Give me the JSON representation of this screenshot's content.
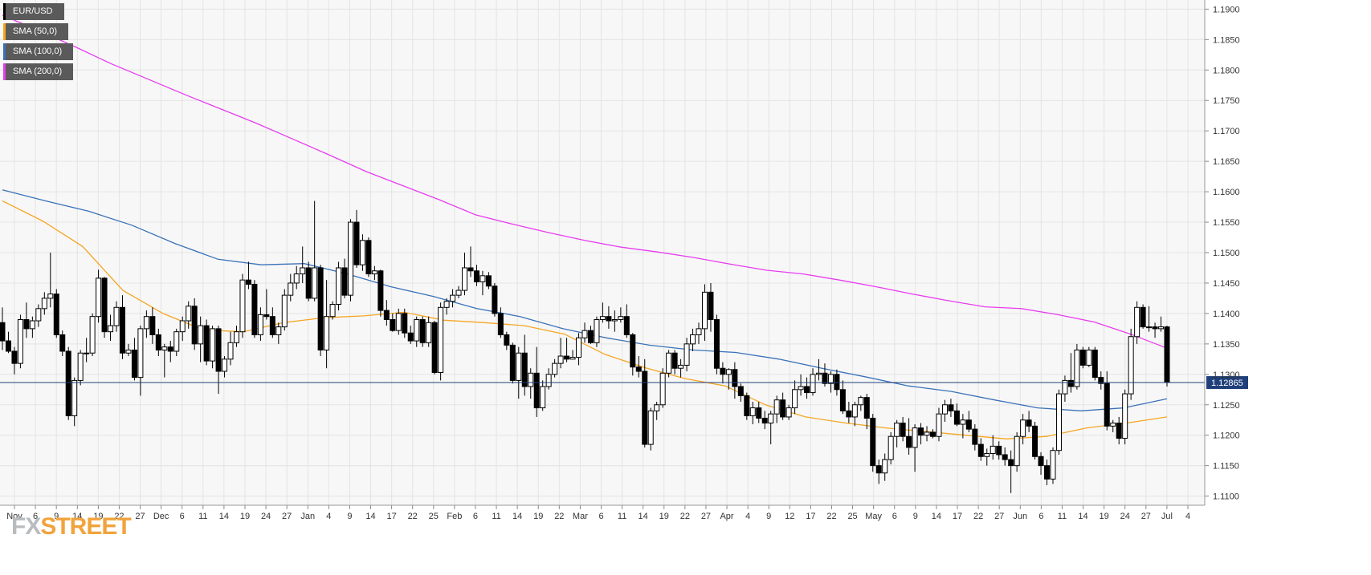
{
  "chart_data": {
    "type": "candlestick",
    "symbol": "EUR/USD",
    "last_price": "1.12865",
    "ylim": [
      1.1085,
      1.1915
    ],
    "y_ticks": [
      "1.1100",
      "1.1150",
      "1.1200",
      "1.1250",
      "1.1300",
      "1.1350",
      "1.1400",
      "1.1450",
      "1.1500",
      "1.1550",
      "1.1600",
      "1.1650",
      "1.1700",
      "1.1750",
      "1.1800",
      "1.1850",
      "1.1900"
    ],
    "x_ticks": [
      "Nov",
      "6",
      "9",
      "14",
      "19",
      "22",
      "27",
      "Dec",
      "6",
      "11",
      "14",
      "19",
      "24",
      "27",
      "Jan",
      "4",
      "9",
      "14",
      "17",
      "22",
      "25",
      "Feb",
      "6",
      "11",
      "14",
      "19",
      "22",
      "Mar",
      "6",
      "11",
      "14",
      "19",
      "22",
      "27",
      "Apr",
      "4",
      "9",
      "12",
      "17",
      "22",
      "25",
      "May",
      "6",
      "9",
      "14",
      "17",
      "22",
      "27",
      "Jun",
      "6",
      "11",
      "14",
      "19",
      "24",
      "27",
      "Jul",
      "4"
    ],
    "grid": true,
    "legend": [
      "EUR/USD",
      "SMA (50,0)",
      "SMA (100,0)",
      "SMA (200,0)"
    ],
    "colors": {
      "up_body": "#ffffff",
      "down_body": "#000000",
      "sma50": "#f5a623",
      "sma100": "#3a72b8",
      "sma200": "#e83cf0",
      "price_line": "#1f3f7a",
      "grid": "#e4e4e4",
      "plot_bg": "#f7f7f7"
    },
    "series_lines": [
      {
        "name": "SMA (200,0)",
        "color": "#e83cf0",
        "values": [
          1.189,
          1.1865,
          1.1838,
          1.181,
          1.1785,
          1.176,
          1.1736,
          1.1712,
          1.1686,
          1.166,
          1.1633,
          1.161,
          1.1587,
          1.1562,
          1.1547,
          1.1533,
          1.152,
          1.1509,
          1.1501,
          1.1492,
          1.1481,
          1.1471,
          1.1465,
          1.1455,
          1.1444,
          1.1432,
          1.1421,
          1.1411,
          1.1408,
          1.1398,
          1.1386,
          1.1366,
          1.1343
        ]
      },
      {
        "name": "SMA (100,0)",
        "color": "#3a72b8",
        "values": [
          1.1603,
          1.1585,
          1.1568,
          1.1545,
          1.1515,
          1.1489,
          1.148,
          1.1482,
          1.1465,
          1.1444,
          1.1428,
          1.1408,
          1.1395,
          1.1375,
          1.136,
          1.1348,
          1.134,
          1.1336,
          1.1325,
          1.131,
          1.1296,
          1.1281,
          1.1272,
          1.1258,
          1.1245,
          1.124,
          1.1245,
          1.126
        ]
      },
      {
        "name": "SMA (50,0)",
        "color": "#f5a623",
        "values": [
          1.1585,
          1.1552,
          1.151,
          1.1438,
          1.14,
          1.1373,
          1.137,
          1.1385,
          1.1393,
          1.1396,
          1.1402,
          1.1389,
          1.1385,
          1.138,
          1.1366,
          1.1333,
          1.1311,
          1.1293,
          1.1281,
          1.125,
          1.123,
          1.122,
          1.1212,
          1.1206,
          1.12,
          1.1194,
          1.1198,
          1.1212,
          1.122,
          1.123
        ]
      }
    ],
    "candles": [
      [
        1.1385,
        1.141,
        1.134,
        1.1355
      ],
      [
        1.1355,
        1.137,
        1.1335,
        1.1338
      ],
      [
        1.1338,
        1.1345,
        1.13,
        1.1318
      ],
      [
        1.1318,
        1.1398,
        1.131,
        1.139
      ],
      [
        1.139,
        1.1418,
        1.136,
        1.1375
      ],
      [
        1.1375,
        1.1395,
        1.136,
        1.1388
      ],
      [
        1.1388,
        1.1415,
        1.1378,
        1.1408
      ],
      [
        1.1408,
        1.1435,
        1.1398,
        1.1425
      ],
      [
        1.1425,
        1.15,
        1.141,
        1.1432
      ],
      [
        1.1432,
        1.144,
        1.136,
        1.1365
      ],
      [
        1.1365,
        1.1372,
        1.133,
        1.1338
      ],
      [
        1.1338,
        1.1345,
        1.1225,
        1.1232
      ],
      [
        1.1232,
        1.1295,
        1.1215,
        1.129
      ],
      [
        1.129,
        1.134,
        1.1282,
        1.1335
      ],
      [
        1.1335,
        1.136,
        1.132,
        1.1335
      ],
      [
        1.1335,
        1.14,
        1.133,
        1.1395
      ],
      [
        1.1395,
        1.1472,
        1.1385,
        1.1458
      ],
      [
        1.1458,
        1.146,
        1.136,
        1.137
      ],
      [
        1.137,
        1.1398,
        1.1355,
        1.138
      ],
      [
        1.138,
        1.142,
        1.137,
        1.141
      ],
      [
        1.141,
        1.143,
        1.1325,
        1.1335
      ],
      [
        1.1335,
        1.135,
        1.133,
        1.134
      ],
      [
        1.134,
        1.136,
        1.129,
        1.1295
      ],
      [
        1.1295,
        1.138,
        1.1265,
        1.1375
      ],
      [
        1.1375,
        1.1405,
        1.136,
        1.1395
      ],
      [
        1.1395,
        1.141,
        1.135,
        1.1365
      ],
      [
        1.1365,
        1.1375,
        1.133,
        1.134
      ],
      [
        1.134,
        1.135,
        1.1295,
        1.1345
      ],
      [
        1.1345,
        1.1355,
        1.132,
        1.1338
      ],
      [
        1.1338,
        1.1375,
        1.133,
        1.137
      ],
      [
        1.137,
        1.1395,
        1.1355,
        1.1388
      ],
      [
        1.1388,
        1.142,
        1.1375,
        1.1412
      ],
      [
        1.1412,
        1.1425,
        1.134,
        1.135
      ],
      [
        1.135,
        1.1395,
        1.132,
        1.138
      ],
      [
        1.138,
        1.139,
        1.1315,
        1.1322
      ],
      [
        1.1322,
        1.138,
        1.131,
        1.1375
      ],
      [
        1.1375,
        1.138,
        1.1268,
        1.1305
      ],
      [
        1.1305,
        1.133,
        1.1295,
        1.1325
      ],
      [
        1.1325,
        1.137,
        1.1315,
        1.1352
      ],
      [
        1.1352,
        1.138,
        1.1345,
        1.137
      ],
      [
        1.137,
        1.1465,
        1.136,
        1.1455
      ],
      [
        1.1455,
        1.1485,
        1.144,
        1.1448
      ],
      [
        1.1448,
        1.1455,
        1.136,
        1.1365
      ],
      [
        1.1365,
        1.141,
        1.1355,
        1.1398
      ],
      [
        1.1398,
        1.144,
        1.139,
        1.1395
      ],
      [
        1.1395,
        1.141,
        1.136,
        1.1365
      ],
      [
        1.1365,
        1.1385,
        1.135,
        1.1378
      ],
      [
        1.1378,
        1.144,
        1.1372,
        1.143
      ],
      [
        1.143,
        1.1465,
        1.142,
        1.145
      ],
      [
        1.145,
        1.1478,
        1.144,
        1.1465
      ],
      [
        1.1465,
        1.151,
        1.145,
        1.1475
      ],
      [
        1.1475,
        1.1485,
        1.142,
        1.1425
      ],
      [
        1.1425,
        1.1585,
        1.142,
        1.1475
      ],
      [
        1.1475,
        1.148,
        1.133,
        1.134
      ],
      [
        1.134,
        1.1455,
        1.131,
        1.1395
      ],
      [
        1.1395,
        1.142,
        1.139,
        1.1415
      ],
      [
        1.1415,
        1.1485,
        1.1405,
        1.1475
      ],
      [
        1.1475,
        1.149,
        1.1425,
        1.143
      ],
      [
        1.143,
        1.1555,
        1.142,
        1.155
      ],
      [
        1.155,
        1.157,
        1.1475,
        1.148
      ],
      [
        1.148,
        1.153,
        1.147,
        1.152
      ],
      [
        1.152,
        1.1525,
        1.146,
        1.1465
      ],
      [
        1.1465,
        1.1478,
        1.1455,
        1.147
      ],
      [
        1.147,
        1.1472,
        1.1395,
        1.1405
      ],
      [
        1.1405,
        1.1422,
        1.138,
        1.139
      ],
      [
        1.139,
        1.14,
        1.137,
        1.1372
      ],
      [
        1.1372,
        1.1408,
        1.1365,
        1.14
      ],
      [
        1.14,
        1.1408,
        1.136,
        1.1368
      ],
      [
        1.1368,
        1.138,
        1.135,
        1.1355
      ],
      [
        1.1355,
        1.1395,
        1.1345,
        1.139
      ],
      [
        1.139,
        1.1395,
        1.1345,
        1.1352
      ],
      [
        1.1352,
        1.1395,
        1.1345,
        1.1385
      ],
      [
        1.1385,
        1.1388,
        1.13,
        1.1303
      ],
      [
        1.1303,
        1.1418,
        1.129,
        1.141
      ],
      [
        1.141,
        1.1425,
        1.1398,
        1.142
      ],
      [
        1.142,
        1.144,
        1.141,
        1.143
      ],
      [
        1.143,
        1.1445,
        1.1425,
        1.1438
      ],
      [
        1.1438,
        1.15,
        1.143,
        1.1475
      ],
      [
        1.1475,
        1.151,
        1.146,
        1.147
      ],
      [
        1.147,
        1.148,
        1.1445,
        1.1452
      ],
      [
        1.1452,
        1.147,
        1.143,
        1.1462
      ],
      [
        1.1462,
        1.1468,
        1.144,
        1.1445
      ],
      [
        1.1445,
        1.145,
        1.1395,
        1.14
      ],
      [
        1.14,
        1.141,
        1.136,
        1.1365
      ],
      [
        1.1365,
        1.137,
        1.134,
        1.1348
      ],
      [
        1.1348,
        1.1352,
        1.1285,
        1.129
      ],
      [
        1.129,
        1.1345,
        1.126,
        1.1335
      ],
      [
        1.1335,
        1.1365,
        1.1265,
        1.128
      ],
      [
        1.128,
        1.131,
        1.126,
        1.1302
      ],
      [
        1.1302,
        1.1345,
        1.123,
        1.1245
      ],
      [
        1.1245,
        1.129,
        1.124,
        1.128
      ],
      [
        1.128,
        1.131,
        1.1275,
        1.13
      ],
      [
        1.13,
        1.1325,
        1.1295,
        1.1318
      ],
      [
        1.1318,
        1.136,
        1.131,
        1.133
      ],
      [
        1.133,
        1.136,
        1.132,
        1.1325
      ],
      [
        1.1325,
        1.134,
        1.1325,
        1.1328
      ],
      [
        1.1328,
        1.1368,
        1.1315,
        1.136
      ],
      [
        1.136,
        1.1385,
        1.1352,
        1.1372
      ],
      [
        1.1372,
        1.138,
        1.135,
        1.1352
      ],
      [
        1.1352,
        1.1395,
        1.1345,
        1.139
      ],
      [
        1.139,
        1.1418,
        1.1385,
        1.1395
      ],
      [
        1.1395,
        1.1412,
        1.1375,
        1.1388
      ],
      [
        1.1388,
        1.1405,
        1.137,
        1.139
      ],
      [
        1.139,
        1.141,
        1.1385,
        1.1395
      ],
      [
        1.1395,
        1.1415,
        1.136,
        1.1365
      ],
      [
        1.1365,
        1.1368,
        1.1298,
        1.1312
      ],
      [
        1.1312,
        1.133,
        1.1295,
        1.1305
      ],
      [
        1.1305,
        1.1325,
        1.118,
        1.1185
      ],
      [
        1.1185,
        1.1245,
        1.1175,
        1.124
      ],
      [
        1.124,
        1.1255,
        1.1225,
        1.125
      ],
      [
        1.125,
        1.131,
        1.1245,
        1.1302
      ],
      [
        1.1302,
        1.134,
        1.1295,
        1.1335
      ],
      [
        1.1335,
        1.134,
        1.13,
        1.131
      ],
      [
        1.131,
        1.1325,
        1.1295,
        1.1315
      ],
      [
        1.1315,
        1.136,
        1.1305,
        1.135
      ],
      [
        1.135,
        1.1375,
        1.1338,
        1.1365
      ],
      [
        1.1365,
        1.1385,
        1.135,
        1.1375
      ],
      [
        1.1375,
        1.1448,
        1.1355,
        1.1435
      ],
      [
        1.1435,
        1.145,
        1.137,
        1.139
      ],
      [
        1.139,
        1.1398,
        1.13,
        1.131
      ],
      [
        1.131,
        1.132,
        1.1285,
        1.13
      ],
      [
        1.13,
        1.131,
        1.1275,
        1.1308
      ],
      [
        1.1308,
        1.132,
        1.126,
        1.128
      ],
      [
        1.128,
        1.1285,
        1.1255,
        1.1265
      ],
      [
        1.1265,
        1.127,
        1.1225,
        1.1232
      ],
      [
        1.1232,
        1.1255,
        1.1218,
        1.1245
      ],
      [
        1.1245,
        1.1255,
        1.122,
        1.1228
      ],
      [
        1.1228,
        1.124,
        1.121,
        1.122
      ],
      [
        1.122,
        1.124,
        1.1185,
        1.1235
      ],
      [
        1.1235,
        1.1265,
        1.122,
        1.1258
      ],
      [
        1.1258,
        1.127,
        1.1225,
        1.123
      ],
      [
        1.123,
        1.125,
        1.1225,
        1.1245
      ],
      [
        1.1245,
        1.129,
        1.1235,
        1.1275
      ],
      [
        1.1275,
        1.13,
        1.1265,
        1.128
      ],
      [
        1.128,
        1.1295,
        1.126,
        1.127
      ],
      [
        1.127,
        1.131,
        1.1265,
        1.13
      ],
      [
        1.13,
        1.1325,
        1.129,
        1.1302
      ],
      [
        1.1302,
        1.1318,
        1.128,
        1.1285
      ],
      [
        1.1285,
        1.1305,
        1.127,
        1.13
      ],
      [
        1.13,
        1.1308,
        1.1265,
        1.1275
      ],
      [
        1.1275,
        1.129,
        1.1235,
        1.124
      ],
      [
        1.124,
        1.1255,
        1.122,
        1.123
      ],
      [
        1.123,
        1.1255,
        1.1215,
        1.125
      ],
      [
        1.125,
        1.1265,
        1.124,
        1.1262
      ],
      [
        1.1262,
        1.1268,
        1.121,
        1.1228
      ],
      [
        1.1228,
        1.1235,
        1.114,
        1.115
      ],
      [
        1.115,
        1.116,
        1.112,
        1.1138
      ],
      [
        1.1138,
        1.117,
        1.1125,
        1.116
      ],
      [
        1.116,
        1.1205,
        1.1152,
        1.1198
      ],
      [
        1.1198,
        1.1225,
        1.118,
        1.122
      ],
      [
        1.122,
        1.123,
        1.119,
        1.1198
      ],
      [
        1.1198,
        1.1228,
        1.1168,
        1.118
      ],
      [
        1.118,
        1.1218,
        1.114,
        1.1212
      ],
      [
        1.1212,
        1.122,
        1.1185,
        1.12
      ],
      [
        1.12,
        1.1215,
        1.119,
        1.1205
      ],
      [
        1.1205,
        1.121,
        1.1195,
        1.1198
      ],
      [
        1.1198,
        1.1245,
        1.119,
        1.1235
      ],
      [
        1.1235,
        1.1258,
        1.1222,
        1.125
      ],
      [
        1.125,
        1.126,
        1.123,
        1.124
      ],
      [
        1.124,
        1.1252,
        1.1215,
        1.1218
      ],
      [
        1.1218,
        1.1235,
        1.1195,
        1.1225
      ],
      [
        1.1225,
        1.124,
        1.1205,
        1.121
      ],
      [
        1.121,
        1.1218,
        1.1175,
        1.1185
      ],
      [
        1.1185,
        1.1195,
        1.1158,
        1.1165
      ],
      [
        1.1165,
        1.1178,
        1.115,
        1.117
      ],
      [
        1.117,
        1.12,
        1.116,
        1.1182
      ],
      [
        1.1182,
        1.119,
        1.116,
        1.1168
      ],
      [
        1.1168,
        1.118,
        1.115,
        1.116
      ],
      [
        1.116,
        1.1175,
        1.1105,
        1.115
      ],
      [
        1.115,
        1.1205,
        1.114,
        1.1198
      ],
      [
        1.1198,
        1.1235,
        1.1185,
        1.1225
      ],
      [
        1.1225,
        1.124,
        1.1205,
        1.1215
      ],
      [
        1.1215,
        1.1222,
        1.116,
        1.1165
      ],
      [
        1.1165,
        1.1172,
        1.1135,
        1.115
      ],
      [
        1.115,
        1.116,
        1.1118,
        1.1128
      ],
      [
        1.1128,
        1.118,
        1.112,
        1.1175
      ],
      [
        1.1175,
        1.1275,
        1.1168,
        1.1268
      ],
      [
        1.1268,
        1.1298,
        1.1255,
        1.129
      ],
      [
        1.129,
        1.1335,
        1.127,
        1.128
      ],
      [
        1.128,
        1.135,
        1.1275,
        1.134
      ],
      [
        1.134,
        1.1345,
        1.131,
        1.1315
      ],
      [
        1.1315,
        1.1345,
        1.1312,
        1.134
      ],
      [
        1.134,
        1.1345,
        1.129,
        1.1295
      ],
      [
        1.1295,
        1.1305,
        1.1275,
        1.1285
      ],
      [
        1.1285,
        1.1305,
        1.1208,
        1.1215
      ],
      [
        1.1215,
        1.1225,
        1.1205,
        1.122
      ],
      [
        1.122,
        1.123,
        1.1185,
        1.1195
      ],
      [
        1.1195,
        1.1275,
        1.1185,
        1.1268
      ],
      [
        1.1268,
        1.1375,
        1.1258,
        1.1362
      ],
      [
        1.1362,
        1.142,
        1.135,
        1.141
      ],
      [
        1.141,
        1.1415,
        1.1375,
        1.1378
      ],
      [
        1.1378,
        1.1412,
        1.137,
        1.1378
      ],
      [
        1.1378,
        1.1385,
        1.136,
        1.1375
      ],
      [
        1.1375,
        1.1395,
        1.137,
        1.1378
      ],
      [
        1.1378,
        1.138,
        1.128,
        1.1287
      ]
    ]
  }
}
